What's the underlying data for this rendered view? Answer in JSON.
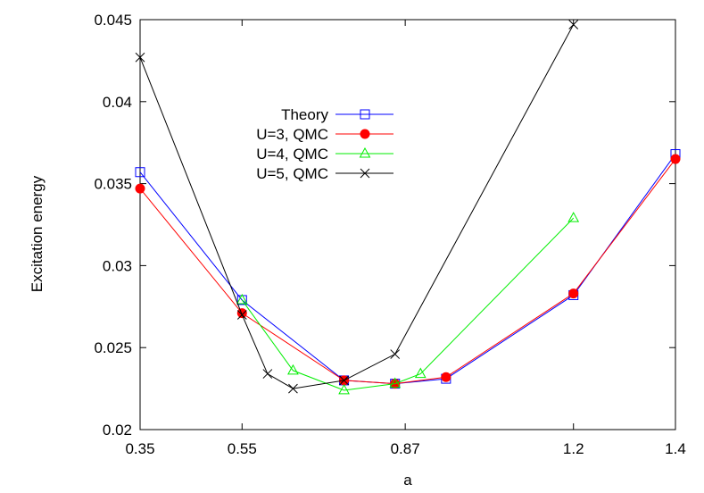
{
  "chart_data": {
    "type": "line",
    "title": "",
    "xlabel": "a",
    "ylabel": "Excitation energy",
    "xlim": [
      0.35,
      1.4
    ],
    "ylim": [
      0.02,
      0.045
    ],
    "xticks": [
      0.35,
      0.55,
      0.87,
      1.2,
      1.4
    ],
    "xtick_labels": [
      "0.35",
      "0.55",
      "0.87",
      "1.2",
      "1.4"
    ],
    "yticks": [
      0.02,
      0.025,
      0.03,
      0.035,
      0.04,
      0.045
    ],
    "ytick_labels": [
      "0.02",
      "0.025",
      "0.03",
      "0.035",
      "0.04",
      "0.045"
    ],
    "grid": false,
    "legend_position": "upper-middle-left",
    "series": [
      {
        "name": "Theory",
        "color": "#0000ff",
        "marker": "open-square",
        "x": [
          0.35,
          0.55,
          0.75,
          0.85,
          0.95,
          1.2,
          1.4
        ],
        "y": [
          0.0357,
          0.0279,
          0.023,
          0.0228,
          0.0231,
          0.0282,
          0.0368
        ]
      },
      {
        "name": "U=3, QMC",
        "color": "#ff0000",
        "marker": "filled-circle",
        "x": [
          0.35,
          0.55,
          0.75,
          0.85,
          0.95,
          1.2,
          1.4
        ],
        "y": [
          0.0347,
          0.0271,
          0.023,
          0.0228,
          0.0232,
          0.0283,
          0.0365
        ]
      },
      {
        "name": "U=4, QMC",
        "color": "#00ee00",
        "marker": "open-triangle",
        "x": [
          0.55,
          0.65,
          0.75,
          0.85,
          0.9,
          1.2
        ],
        "y": [
          0.0279,
          0.0236,
          0.0224,
          0.0228,
          0.0234,
          0.0329
        ]
      },
      {
        "name": "U=5, QMC",
        "color": "#000000",
        "marker": "x",
        "x": [
          0.35,
          0.55,
          0.6,
          0.65,
          0.75,
          0.85,
          1.2
        ],
        "y": [
          0.0427,
          0.027,
          0.0234,
          0.0225,
          0.023,
          0.0246,
          0.0447
        ]
      }
    ]
  }
}
